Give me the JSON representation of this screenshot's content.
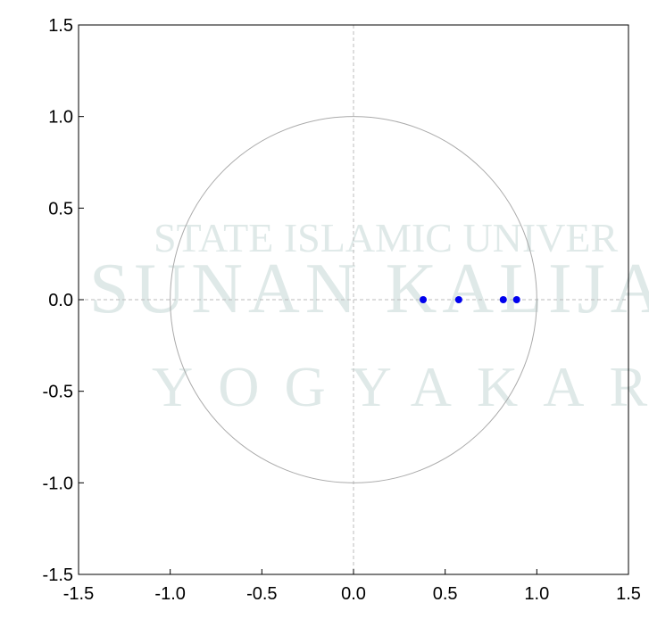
{
  "chart_data": {
    "type": "scatter",
    "watermark": [
      "STATE ISLAMIC UNIVER",
      "SUNAN KALIJA",
      "YOGYAKAR"
    ],
    "x": [
      0.38,
      0.574,
      0.817,
      0.89
    ],
    "values": [
      0,
      0,
      0,
      0
    ],
    "color": "#0000ee",
    "xlim": [
      -1.5,
      1.5
    ],
    "ylim": [
      -1.5,
      1.5
    ],
    "xticks": [
      -1.5,
      {
        "value": -1.0,
        "label": "-1.0"
      },
      -0.5,
      {
        "value": 0.0,
        "label": "0.0"
      },
      0.5,
      {
        "value": 1.0,
        "label": "1.0"
      },
      1.5
    ],
    "yticks": [
      -1.5,
      {
        "value": -1.0,
        "label": "-1.0"
      },
      -0.5,
      {
        "value": 0.0,
        "label": "0.0"
      },
      0.5,
      {
        "value": 1.0,
        "label": "1.0"
      },
      1.5
    ]
  }
}
